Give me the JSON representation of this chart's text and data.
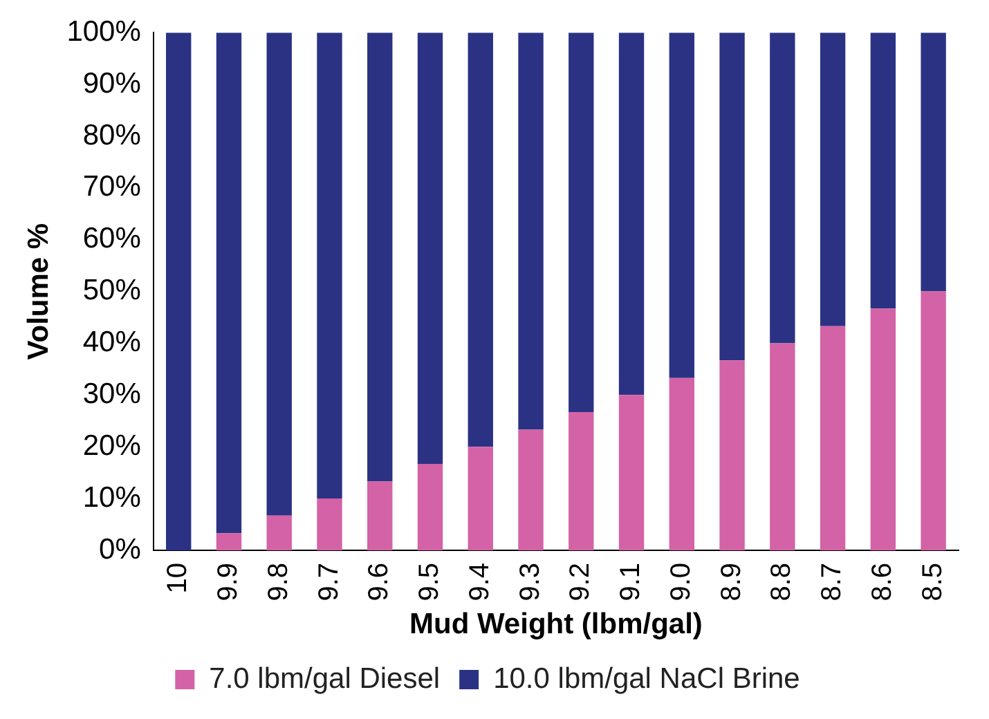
{
  "chart_data": {
    "type": "bar",
    "stacked": true,
    "xlabel": "Mud Weight (lbm/gal)",
    "ylabel": "Volume %",
    "categories": [
      "10",
      "9.9",
      "9.8",
      "9.7",
      "9.6",
      "9.5",
      "9.4",
      "9.3",
      "9.2",
      "9.1",
      "9.0",
      "8.9",
      "8.8",
      "8.7",
      "8.6",
      "8.5"
    ],
    "series": [
      {
        "name": "7.0 lbm/gal Diesel",
        "color": "#d462a6",
        "values": [
          0,
          3.3,
          6.7,
          10,
          13.3,
          16.7,
          20,
          23.3,
          26.7,
          30,
          33.3,
          36.7,
          40,
          43.3,
          46.7,
          50
        ]
      },
      {
        "name": "10.0 lbm/gal NaCl Brine",
        "color": "#2b3283",
        "values": [
          100,
          96.7,
          93.3,
          90,
          86.7,
          83.3,
          80,
          76.7,
          73.3,
          70,
          66.7,
          63.3,
          60,
          56.7,
          53.3,
          50
        ]
      }
    ],
    "ylim": [
      0,
      100
    ],
    "yticks": [
      {
        "value": 0,
        "label": "0%"
      },
      {
        "value": 10,
        "label": "10%"
      },
      {
        "value": 20,
        "label": "20%"
      },
      {
        "value": 30,
        "label": "30%"
      },
      {
        "value": 40,
        "label": "40%"
      },
      {
        "value": 50,
        "label": "50%"
      },
      {
        "value": 60,
        "label": "60%"
      },
      {
        "value": 70,
        "label": "70%"
      },
      {
        "value": 80,
        "label": "80%"
      },
      {
        "value": 90,
        "label": "90%"
      },
      {
        "value": 100,
        "label": "100%"
      }
    ],
    "grid": false,
    "legend": "bottom"
  }
}
